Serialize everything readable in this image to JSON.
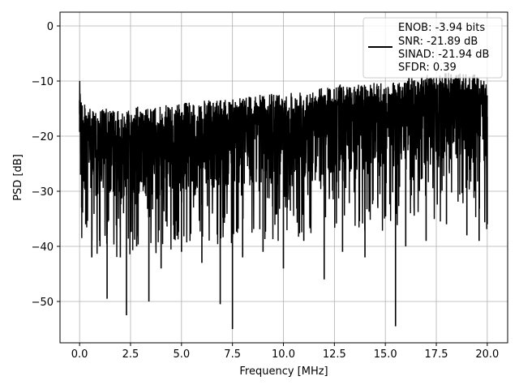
{
  "chart_data": {
    "type": "line",
    "title": "",
    "xlabel": "Frequency [MHz]",
    "ylabel": "PSD [dB]",
    "xlim": [
      -0.96,
      21.0
    ],
    "ylim": [
      -57.5,
      2.5
    ],
    "xticks": [
      0.0,
      2.5,
      5.0,
      7.5,
      10.0,
      12.5,
      15.0,
      17.5,
      20.0
    ],
    "xtick_labels": [
      "0.0",
      "2.5",
      "5.0",
      "7.5",
      "10.0",
      "12.5",
      "15.0",
      "17.5",
      "20.0"
    ],
    "yticks": [
      0,
      -10,
      -20,
      -30,
      -40,
      -50
    ],
    "ytick_labels": [
      "0",
      "−10",
      "−20",
      "−30",
      "−40",
      "−50"
    ],
    "grid": true,
    "legend_position": "top-right",
    "line_color": "#000000",
    "series": [
      {
        "name": "ENOB: -3.94 bits\nSNR: -21.89 dB\nSINAD: -21.94 dB\nSFDR: 0.39",
        "description_points_x": [
          0.0,
          0.05,
          0.1,
          0.3,
          0.6,
          1.0,
          1.35,
          2.0,
          2.3,
          2.8,
          3.4,
          4.0,
          5.0,
          6.0,
          6.9,
          7.5,
          8.0,
          9.0,
          10.0,
          11.0,
          12.0,
          12.9,
          14.0,
          15.5,
          16.0,
          17.0,
          18.0,
          19.0,
          19.6,
          20.0
        ],
        "description_points_upper": [
          -7.5,
          -10,
          -13,
          -14,
          -15.5,
          -15,
          -15,
          -15.5,
          -15,
          -14.5,
          -15,
          -14.5,
          -14,
          -13.5,
          -13.5,
          -13,
          -12.5,
          -12.5,
          -12,
          -11.5,
          -11,
          -10.5,
          -10.5,
          -10,
          -9.5,
          -9,
          -8.5,
          -8.5,
          -9,
          -10.5
        ],
        "description_points_lower": [
          -16,
          -27,
          -33,
          -36,
          -42,
          -40,
          -49.5,
          -42,
          -52.5,
          -40,
          -50,
          -44,
          -41,
          -43,
          -50.5,
          -55,
          -42,
          -41,
          -44,
          -39,
          -46,
          -41,
          -42,
          -54.5,
          -40,
          -39,
          -36,
          -38,
          -39,
          -36
        ]
      }
    ],
    "legend_lines": [
      "ENOB: -3.94 bits",
      "SNR: -21.89 dB",
      "SINAD: -21.94 dB",
      "SFDR: 0.39"
    ]
  }
}
